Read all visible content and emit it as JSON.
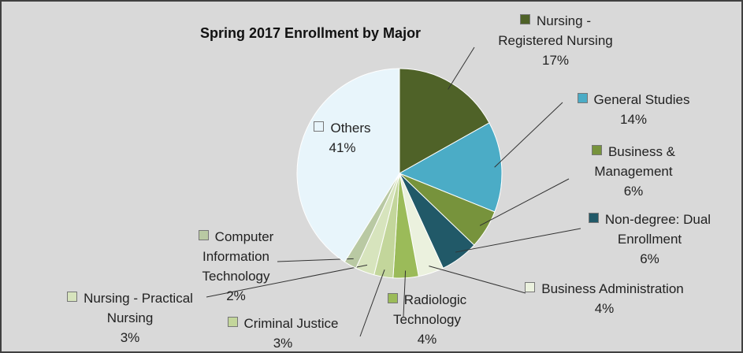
{
  "chart_data": {
    "type": "pie",
    "title": "Spring 2017 Enrollment by Major",
    "categories": [
      "Nursing - Registered Nursing",
      "General Studies",
      "Business & Management",
      "Non-degree: Dual Enrollment",
      "Business Administration",
      "Radiologic Technology",
      "Criminal Justice",
      "Nursing - Practical Nursing",
      "Computer Information Technology",
      "Others"
    ],
    "values": [
      17,
      14,
      6,
      6,
      4,
      4,
      3,
      3,
      2,
      41
    ],
    "value_labels": [
      "17%",
      "14%",
      "6%",
      "6%",
      "4%",
      "4%",
      "3%",
      "3%",
      "2%",
      "41%"
    ],
    "colors": [
      "#4f6228",
      "#4bacc6",
      "#77933c",
      "#215968",
      "#ebf1de",
      "#9bbb59",
      "#c3d69b",
      "#d7e4bd",
      "#b9c9a3",
      "#e8f5fb"
    ]
  }
}
